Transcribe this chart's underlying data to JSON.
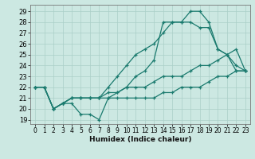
{
  "xlabel": "Humidex (Indice chaleur)",
  "bg_color": "#cce8e2",
  "line_color": "#1a7a6e",
  "grid_color": "#aacfc8",
  "xlim": [
    -0.5,
    23.5
  ],
  "ylim": [
    18.6,
    29.6
  ],
  "xticks": [
    0,
    1,
    2,
    3,
    4,
    5,
    6,
    7,
    8,
    9,
    10,
    11,
    12,
    13,
    14,
    15,
    16,
    17,
    18,
    19,
    20,
    21,
    22,
    23
  ],
  "yticks": [
    19,
    20,
    21,
    22,
    23,
    24,
    25,
    26,
    27,
    28,
    29
  ],
  "lines": [
    [
      22,
      22,
      20,
      20.5,
      20.5,
      19.5,
      19.5,
      19,
      21,
      21.5,
      22,
      23,
      23.5,
      24.5,
      28,
      28,
      28,
      29,
      29,
      28,
      25.5,
      25,
      24,
      23.5
    ],
    [
      22,
      22,
      20,
      20.5,
      21,
      21,
      21,
      21,
      22,
      23,
      24,
      25,
      25.5,
      26,
      27,
      28,
      28,
      28,
      27.5,
      27.5,
      25.5,
      25,
      23.5,
      23.5
    ],
    [
      22,
      22,
      20,
      20.5,
      21,
      21,
      21,
      21,
      21.5,
      21.5,
      22,
      22,
      22,
      22.5,
      23,
      23,
      23,
      23.5,
      24,
      24,
      24.5,
      25,
      25.5,
      23.5
    ],
    [
      22,
      22,
      20,
      20.5,
      21,
      21,
      21,
      21,
      21,
      21,
      21,
      21,
      21,
      21,
      21.5,
      21.5,
      22,
      22,
      22,
      22.5,
      23,
      23,
      23.5,
      23.5
    ]
  ]
}
